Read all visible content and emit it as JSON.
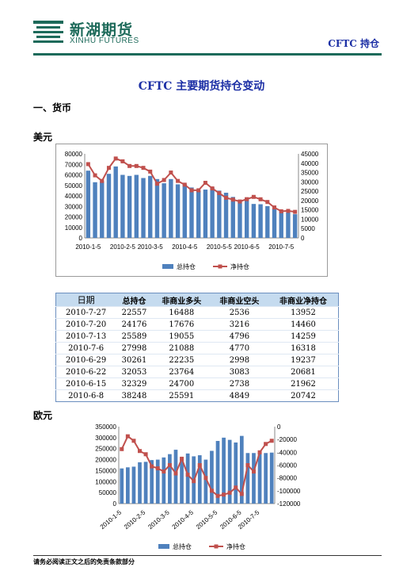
{
  "header": {
    "logo_cn": "新湖期货",
    "logo_en": "XINHU FUTURES",
    "tag": "CFTC 持仓"
  },
  "title": "CFTC 主要期货持仓变动",
  "section": "一、货币",
  "usd_label": "美元",
  "eur_label": "欧元",
  "colors": {
    "bar": "#4f81bd",
    "line": "#c0504d",
    "table_header": "#c5dbef",
    "brand": "#1d6a5a",
    "title": "#1c2fa5"
  },
  "table": {
    "headers": [
      "日期",
      "总持仓",
      "非商业多头",
      "非商业空头",
      "非商业净持仓"
    ],
    "rows": [
      [
        "2010-7-27",
        "22557",
        "16488",
        "2536",
        "13952"
      ],
      [
        "2010-7-20",
        "24176",
        "17676",
        "3216",
        "14460"
      ],
      [
        "2010-7-13",
        "25589",
        "19055",
        "4796",
        "14259"
      ],
      [
        "2010-7-6",
        "27998",
        "21088",
        "4770",
        "16318"
      ],
      [
        "2010-6-29",
        "30261",
        "22235",
        "2998",
        "19237"
      ],
      [
        "2010-6-22",
        "32053",
        "23764",
        "3083",
        "20681"
      ],
      [
        "2010-6-15",
        "32329",
        "24700",
        "2738",
        "21962"
      ],
      [
        "2010-6-8",
        "38248",
        "25591",
        "4849",
        "20742"
      ]
    ]
  },
  "chart_data": [
    {
      "type": "bar",
      "x_tick_labels": [
        "2010-1-5",
        "2010-2-5",
        "2010-3-5",
        "2010-4-5",
        "2010-5-5",
        "2010-6-5",
        "2010-7-5"
      ],
      "y_ticks_left": [
        "0",
        "10000",
        "20000",
        "30000",
        "40000",
        "50000",
        "60000",
        "70000",
        "80000"
      ],
      "y_ticks_right": [
        "0",
        "5000",
        "10000",
        "15000",
        "20000",
        "25000",
        "30000",
        "35000",
        "40000",
        "45000"
      ],
      "ylim_left": [
        0,
        80000
      ],
      "ylim_right": [
        0,
        45000
      ],
      "legend": "bottom",
      "series": [
        {
          "name": "总持仓",
          "axis": "left",
          "type": "bar",
          "values": [
            64000,
            53000,
            54000,
            61000,
            68000,
            60000,
            59000,
            60000,
            57000,
            59000,
            56000,
            52000,
            56000,
            51000,
            51000,
            48000,
            45000,
            46000,
            48000,
            45000,
            43000,
            39000,
            36000,
            38248,
            32329,
            32053,
            30261,
            27998,
            25589,
            24176,
            22557
          ]
        },
        {
          "name": "净持仓",
          "axis": "right",
          "type": "line",
          "values": [
            39500,
            33500,
            30500,
            37500,
            42500,
            41000,
            38500,
            38500,
            37500,
            35500,
            29000,
            31000,
            35000,
            30500,
            28500,
            25500,
            25500,
            29500,
            26500,
            24000,
            21500,
            20500,
            19500,
            20742,
            21962,
            20681,
            19237,
            16318,
            14259,
            14460,
            13952
          ]
        }
      ]
    },
    {
      "type": "bar",
      "x_tick_labels": [
        "2010-1-5",
        "2010-2-5",
        "2010-3-5",
        "2010-4-5",
        "2010-5-5",
        "2010-6-5",
        "2010-7-5"
      ],
      "y_ticks_left": [
        "0",
        "50000",
        "100000",
        "150000",
        "200000",
        "250000",
        "300000",
        "350000"
      ],
      "y_ticks_right": [
        "0",
        "-20000",
        "-40000",
        "-60000",
        "-80000",
        "-100000",
        "-120000"
      ],
      "ylim_left": [
        0,
        350000
      ],
      "ylim_right": [
        -120000,
        0
      ],
      "legend": "bottom",
      "series": [
        {
          "name": "总持仓",
          "axis": "left",
          "type": "bar",
          "values": [
            160000,
            165000,
            168000,
            188000,
            190000,
            198000,
            200000,
            210000,
            225000,
            245000,
            200000,
            228000,
            215000,
            220000,
            200000,
            240000,
            285000,
            300000,
            290000,
            278000,
            308000,
            230000,
            230000,
            235000,
            230000,
            232000
          ]
        },
        {
          "name": "净持仓",
          "axis": "right",
          "type": "line",
          "values": [
            -35000,
            -15000,
            -22000,
            -38000,
            -43000,
            -62000,
            -65000,
            -70000,
            -60000,
            -73000,
            -50000,
            -75000,
            -85000,
            -60000,
            -80000,
            -100000,
            -108000,
            -106000,
            -103000,
            -95000,
            -105000,
            -60000,
            -70000,
            -40000,
            -27000,
            -22000
          ]
        }
      ]
    }
  ],
  "footer": "请务必阅读正文之后的免责条款部分"
}
